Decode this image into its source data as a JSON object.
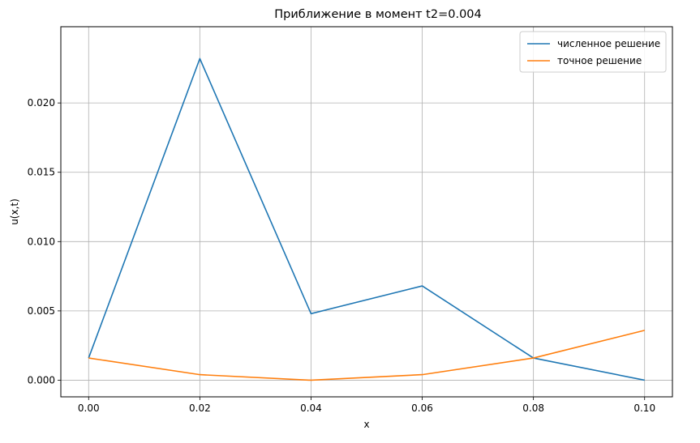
{
  "chart_data": {
    "type": "line",
    "title": "Приближение в момент t2=0.004",
    "xlabel": "x",
    "ylabel": "u(x,t)",
    "xlim": [
      -0.005,
      0.105
    ],
    "ylim": [
      -0.0012,
      0.0255
    ],
    "grid": true,
    "legend_position": "top-right",
    "x_ticks": [
      0.0,
      0.02,
      0.04,
      0.06,
      0.08,
      0.1
    ],
    "x_tick_labels": [
      "0.00",
      "0.02",
      "0.04",
      "0.06",
      "0.08",
      "0.10"
    ],
    "y_ticks": [
      0.0,
      0.005,
      0.01,
      0.015,
      0.02
    ],
    "y_tick_labels": [
      "0.000",
      "0.005",
      "0.010",
      "0.015",
      "0.020"
    ],
    "series": [
      {
        "name": "численное решение",
        "color": "#1f77b4",
        "x": [
          0.0,
          0.02,
          0.04,
          0.06,
          0.08,
          0.1
        ],
        "y": [
          0.0016,
          0.0232,
          0.0048,
          0.0068,
          0.0016,
          0.0
        ]
      },
      {
        "name": "точное решение",
        "color": "#ff7f0e",
        "x": [
          0.0,
          0.02,
          0.04,
          0.06,
          0.08,
          0.1
        ],
        "y": [
          0.0016,
          0.0004,
          0.0,
          0.0004,
          0.0016,
          0.0036
        ]
      }
    ]
  }
}
